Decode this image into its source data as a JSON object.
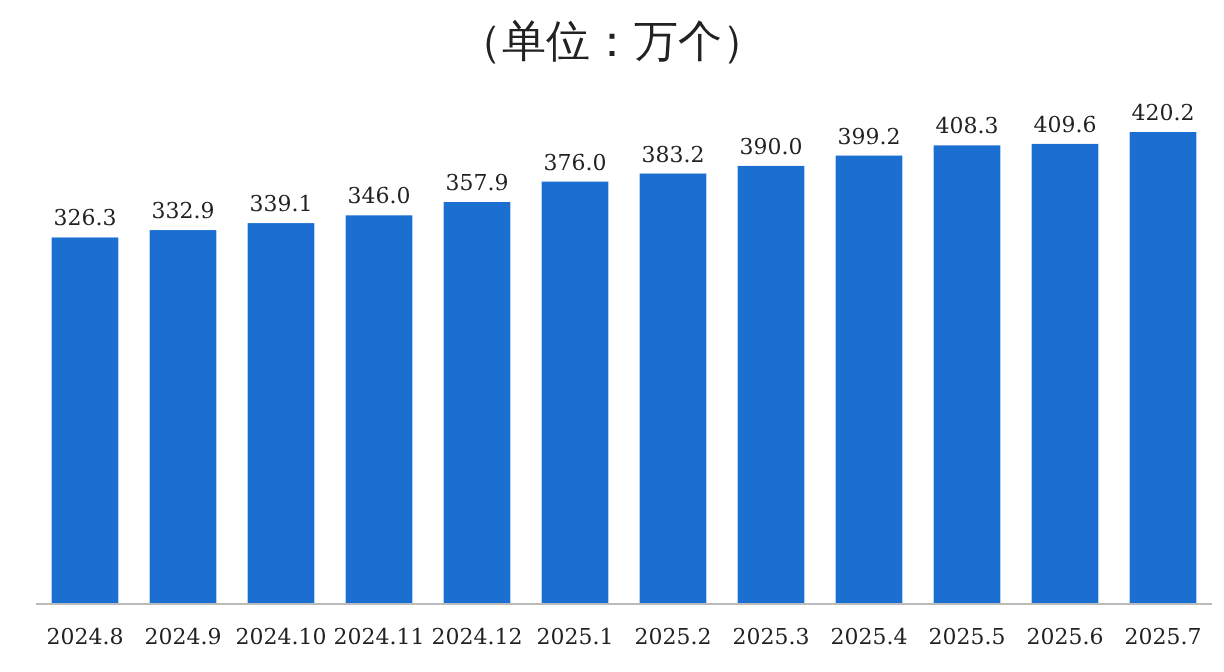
{
  "chart_data": {
    "type": "bar",
    "title": "（单位：万个）",
    "categories": [
      "2024.8",
      "2024.9",
      "2024.10",
      "2024.11",
      "2024.12",
      "2025.1",
      "2025.2",
      "2025.3",
      "2025.4",
      "2025.5",
      "2025.6",
      "2025.7"
    ],
    "values": [
      326.3,
      332.9,
      339.1,
      346.0,
      357.9,
      376.0,
      383.2,
      390.0,
      399.2,
      408.3,
      409.6,
      420.2
    ],
    "value_labels": [
      "326.3",
      "332.9",
      "339.1",
      "346.0",
      "357.9",
      "376.0",
      "383.2",
      "390.0",
      "399.2",
      "408.3",
      "409.6",
      "420.2"
    ],
    "color": "#1b6fd1"
  }
}
